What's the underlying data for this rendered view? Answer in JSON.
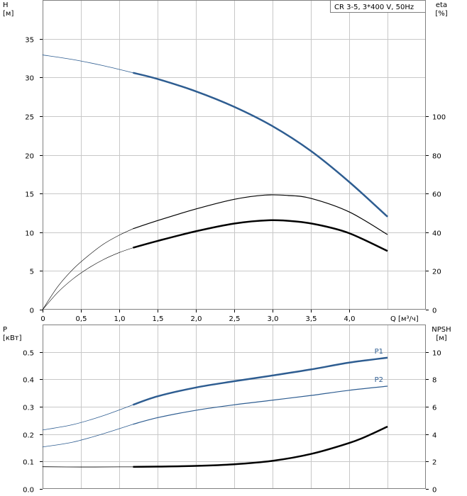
{
  "chart_data": [
    {
      "type": "line",
      "legend": "CR 3-5, 3*400 V, 50Hz",
      "legend_position": "top-right",
      "grid": true,
      "xlabel": "Q [м³/ч]",
      "ylabel_left_line1": "H",
      "ylabel_left_line2": "[м]",
      "ylabel_right_line1": "eta",
      "ylabel_right_line2": "[%]",
      "xlim": [
        0,
        5.0
      ],
      "ylim": [
        0,
        40
      ],
      "y2lim": [
        0,
        160
      ],
      "x_ticks": [
        "0",
        "0,5",
        "1,0",
        "1,5",
        "2,0",
        "2,5",
        "3,0",
        "3,5",
        "4,0"
      ],
      "y_ticks": [
        "0",
        "5",
        "10",
        "15",
        "20",
        "25",
        "30",
        "35"
      ],
      "y2_ticks": [
        "0",
        "20",
        "40",
        "60",
        "80",
        "100"
      ],
      "series": [
        {
          "axis": "left",
          "color": "#2e5d91",
          "range_width": 2.5,
          "ext_width": 0.8,
          "range": [
            1.18,
            4.5
          ],
          "x": [
            0,
            0.4,
            0.8,
            1.18,
            1.5,
            2.0,
            2.5,
            3.0,
            3.5,
            4.0,
            4.5
          ],
          "y": [
            32.9,
            32.3,
            31.5,
            30.6,
            29.8,
            28.2,
            26.2,
            23.7,
            20.5,
            16.5,
            12.0
          ]
        },
        {
          "axis": "right",
          "color": "#000000",
          "range_width": 1.2,
          "ext_width": 0.6,
          "range": [
            1.18,
            4.5
          ],
          "x": [
            0,
            0.2,
            0.4,
            0.6,
            0.8,
            1.0,
            1.18,
            1.5,
            2.0,
            2.5,
            2.9,
            3.2,
            3.5,
            4.0,
            4.5
          ],
          "y": [
            0,
            12,
            21,
            28,
            34,
            38.5,
            41.8,
            46,
            52,
            57,
            59.2,
            59.0,
            57.5,
            50.5,
            38.8
          ]
        },
        {
          "axis": "right",
          "color": "#000000",
          "range_width": 2.5,
          "ext_width": 0.6,
          "range": [
            1.18,
            4.5
          ],
          "x": [
            0,
            0.2,
            0.4,
            0.6,
            0.8,
            1.0,
            1.18,
            1.5,
            2.0,
            2.5,
            2.95,
            3.3,
            3.6,
            4.0,
            4.5
          ],
          "y": [
            0,
            9,
            16,
            21.5,
            26,
            29.5,
            32,
            35.5,
            40.5,
            44.5,
            46.2,
            45.6,
            43.8,
            39.5,
            30.3
          ]
        }
      ]
    },
    {
      "type": "line",
      "grid": true,
      "ylabel_left_line1": "P",
      "ylabel_left_line2": "[кВт]",
      "ylabel_right_line1": "NPSH",
      "ylabel_right_line2": "[м]",
      "xlim": [
        0,
        5.0
      ],
      "ylim": [
        0,
        0.6
      ],
      "y2lim": [
        0,
        12
      ],
      "y_ticks": [
        "0.0",
        "0.1",
        "0.2",
        "0.3",
        "0.4",
        "0.5"
      ],
      "y2_ticks": [
        "0",
        "2",
        "4",
        "6",
        "8",
        "10"
      ],
      "series": [
        {
          "name": "P1",
          "axis": "left",
          "color": "#2e5d91",
          "range_width": 2.5,
          "ext_width": 0.8,
          "range": [
            1.18,
            4.5
          ],
          "x": [
            0,
            0.4,
            0.8,
            1.18,
            1.5,
            2.0,
            2.5,
            3.0,
            3.5,
            4.0,
            4.5
          ],
          "y": [
            0.215,
            0.235,
            0.268,
            0.307,
            0.338,
            0.37,
            0.393,
            0.414,
            0.436,
            0.461,
            0.479
          ]
        },
        {
          "name": "P2",
          "axis": "left",
          "color": "#2e5d91",
          "range_width": 1.2,
          "ext_width": 0.8,
          "range": [
            1.18,
            4.5
          ],
          "x": [
            0,
            0.4,
            0.8,
            1.18,
            1.5,
            2.0,
            2.5,
            3.0,
            3.5,
            4.0,
            4.5
          ],
          "y": [
            0.153,
            0.171,
            0.202,
            0.236,
            0.26,
            0.287,
            0.307,
            0.324,
            0.341,
            0.36,
            0.375
          ]
        },
        {
          "axis": "right",
          "color": "#000000",
          "range_width": 2.5,
          "ext_width": 0.8,
          "range": [
            1.18,
            4.5
          ],
          "x": [
            0,
            0.5,
            1.0,
            1.18,
            1.5,
            2.0,
            2.5,
            3.0,
            3.5,
            4.0,
            4.25,
            4.5
          ],
          "y": [
            1.62,
            1.6,
            1.61,
            1.61,
            1.63,
            1.68,
            1.8,
            2.05,
            2.55,
            3.35,
            3.9,
            4.55
          ]
        }
      ]
    }
  ]
}
